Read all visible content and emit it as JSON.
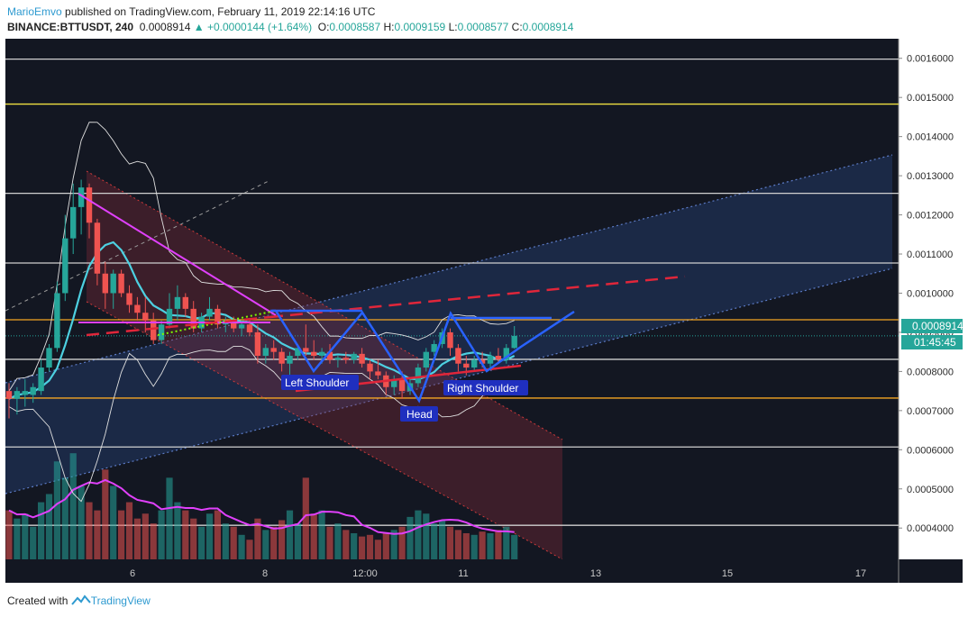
{
  "header": {
    "user": "MarioEmvo",
    "published_text": "published on TradingView.com, February 11, 2019 22:14:16 UTC",
    "symbol": "BINANCE:BTTUSDT, 240",
    "last": "0.0008914",
    "change": "▲ +0.0000144 (+1.64%)",
    "o_label": "O:",
    "o_value": "0.0008587",
    "h_label": "H:",
    "h_value": "0.0009159",
    "l_label": "L:",
    "l_value": "0.0008577",
    "c_label": "C:",
    "c_value": "0.0008914"
  },
  "footer": {
    "created_with": "Created with",
    "brand": "TradingView",
    "logo_icon": "tradingview-logo-icon"
  },
  "price_tag": {
    "value": "0.0008914",
    "countdown": "01:45:45"
  },
  "pattern_labels": {
    "left": "Left Shoulder",
    "head": "Head",
    "right": "Right Shoulder"
  },
  "colors": {
    "background": "#131722",
    "up": "#26a69a",
    "down": "#ef5350",
    "ma": "#4dd0e1",
    "volume_ma": "#e040fb",
    "neckline": "#2962ff",
    "channel": "#5c7cc8",
    "level_white": "#d0d0d0",
    "level_yellow": "#f0e040",
    "level_orange": "#f5a623"
  },
  "chart_data": {
    "type": "candlestick",
    "ylim": [
      0.00032,
      0.00165
    ],
    "y_ticks": [
      "0.0016000",
      "0.0015000",
      "0.0014000",
      "0.0013000",
      "0.0012000",
      "0.0011000",
      "0.0010000",
      "0.0009000",
      "0.0008000",
      "0.0007000",
      "0.0006000",
      "0.0005000",
      "0.0004000"
    ],
    "x_ticks": [
      "6",
      "8",
      "12:00",
      "11",
      "13",
      "15",
      "17"
    ],
    "horizontal_levels": [
      {
        "price": 0.001598,
        "color": "white"
      },
      {
        "price": 0.001483,
        "color": "yellow"
      },
      {
        "price": 0.001255,
        "color": "white"
      },
      {
        "price": 0.001077,
        "color": "white"
      },
      {
        "price": 0.000932,
        "color": "orange"
      },
      {
        "price": 0.000831,
        "color": "white"
      },
      {
        "price": 0.000732,
        "color": "orange"
      },
      {
        "price": 0.000607,
        "color": "white"
      },
      {
        "price": 0.000407,
        "color": "white"
      }
    ],
    "candles": [
      {
        "o": 0.00075,
        "h": 0.00077,
        "l": 0.00068,
        "c": 0.00073
      },
      {
        "o": 0.00073,
        "h": 0.00076,
        "l": 0.00069,
        "c": 0.00075
      },
      {
        "o": 0.00074,
        "h": 0.00078,
        "l": 0.00071,
        "c": 0.00075
      },
      {
        "o": 0.00074,
        "h": 0.00077,
        "l": 0.00072,
        "c": 0.00076
      },
      {
        "o": 0.00075,
        "h": 0.00083,
        "l": 0.00074,
        "c": 0.00081
      },
      {
        "o": 0.00081,
        "h": 0.00087,
        "l": 0.0008,
        "c": 0.00086
      },
      {
        "o": 0.00086,
        "h": 0.00103,
        "l": 0.00085,
        "c": 0.001
      },
      {
        "o": 0.001,
        "h": 0.0012,
        "l": 0.00098,
        "c": 0.00114
      },
      {
        "o": 0.00114,
        "h": 0.00128,
        "l": 0.0011,
        "c": 0.00122
      },
      {
        "o": 0.00122,
        "h": 0.00129,
        "l": 0.00115,
        "c": 0.00127
      },
      {
        "o": 0.00127,
        "h": 0.00128,
        "l": 0.00114,
        "c": 0.00118
      },
      {
        "o": 0.00118,
        "h": 0.00119,
        "l": 0.00102,
        "c": 0.00105
      },
      {
        "o": 0.00105,
        "h": 0.00108,
        "l": 0.00096,
        "c": 0.001
      },
      {
        "o": 0.001,
        "h": 0.00106,
        "l": 0.00096,
        "c": 0.00105
      },
      {
        "o": 0.00105,
        "h": 0.00106,
        "l": 0.00099,
        "c": 0.001
      },
      {
        "o": 0.001,
        "h": 0.00102,
        "l": 0.00095,
        "c": 0.00097
      },
      {
        "o": 0.00097,
        "h": 0.00099,
        "l": 0.00093,
        "c": 0.00095
      },
      {
        "o": 0.00095,
        "h": 0.00099,
        "l": 0.0009,
        "c": 0.00093
      },
      {
        "o": 0.00093,
        "h": 0.00095,
        "l": 0.00087,
        "c": 0.00088
      },
      {
        "o": 0.00088,
        "h": 0.00093,
        "l": 0.00087,
        "c": 0.00092
      },
      {
        "o": 0.00092,
        "h": 0.001,
        "l": 0.00091,
        "c": 0.00096
      },
      {
        "o": 0.00096,
        "h": 0.00102,
        "l": 0.00093,
        "c": 0.00099
      },
      {
        "o": 0.00099,
        "h": 0.001,
        "l": 0.00094,
        "c": 0.00096
      },
      {
        "o": 0.00096,
        "h": 0.00098,
        "l": 0.0009,
        "c": 0.00091
      },
      {
        "o": 0.00091,
        "h": 0.00095,
        "l": 0.0009,
        "c": 0.00094
      },
      {
        "o": 0.00094,
        "h": 0.00099,
        "l": 0.00093,
        "c": 0.00096
      },
      {
        "o": 0.00096,
        "h": 0.00097,
        "l": 0.00091,
        "c": 0.00092
      },
      {
        "o": 0.00092,
        "h": 0.00094,
        "l": 0.0009,
        "c": 0.00093
      },
      {
        "o": 0.00093,
        "h": 0.00094,
        "l": 0.0009,
        "c": 0.00091
      },
      {
        "o": 0.00091,
        "h": 0.00093,
        "l": 0.00089,
        "c": 0.00092
      },
      {
        "o": 0.00092,
        "h": 0.00093,
        "l": 0.00089,
        "c": 0.0009
      },
      {
        "o": 0.0009,
        "h": 0.00092,
        "l": 0.00082,
        "c": 0.00084
      },
      {
        "o": 0.00084,
        "h": 0.00087,
        "l": 0.00082,
        "c": 0.00086
      },
      {
        "o": 0.00086,
        "h": 0.00088,
        "l": 0.00083,
        "c": 0.00085
      },
      {
        "o": 0.00085,
        "h": 0.00086,
        "l": 0.0008,
        "c": 0.00082
      },
      {
        "o": 0.00082,
        "h": 0.00085,
        "l": 0.00079,
        "c": 0.00084
      },
      {
        "o": 0.00084,
        "h": 0.00087,
        "l": 0.00083,
        "c": 0.00086
      },
      {
        "o": 0.00086,
        "h": 0.00092,
        "l": 0.00084,
        "c": 0.00085
      },
      {
        "o": 0.00085,
        "h": 0.00088,
        "l": 0.00083,
        "c": 0.00084
      },
      {
        "o": 0.00084,
        "h": 0.00086,
        "l": 0.00082,
        "c": 0.00085
      },
      {
        "o": 0.00085,
        "h": 0.00087,
        "l": 0.00082,
        "c": 0.00083
      },
      {
        "o": 0.00083,
        "h": 0.00084,
        "l": 0.00081,
        "c": 0.000835
      },
      {
        "o": 0.000835,
        "h": 0.00085,
        "l": 0.00082,
        "c": 0.00083
      },
      {
        "o": 0.00083,
        "h": 0.00085,
        "l": 0.00082,
        "c": 0.000845
      },
      {
        "o": 0.000845,
        "h": 0.00086,
        "l": 0.00081,
        "c": 0.00082
      },
      {
        "o": 0.00082,
        "h": 0.00083,
        "l": 0.00078,
        "c": 0.0008
      },
      {
        "o": 0.0008,
        "h": 0.00083,
        "l": 0.00078,
        "c": 0.00079
      },
      {
        "o": 0.00079,
        "h": 0.0008,
        "l": 0.00074,
        "c": 0.00076
      },
      {
        "o": 0.00076,
        "h": 0.00079,
        "l": 0.00074,
        "c": 0.00078
      },
      {
        "o": 0.00078,
        "h": 0.0008,
        "l": 0.00073,
        "c": 0.00075
      },
      {
        "o": 0.00075,
        "h": 0.00078,
        "l": 0.00074,
        "c": 0.00077
      },
      {
        "o": 0.00077,
        "h": 0.00082,
        "l": 0.00076,
        "c": 0.00081
      },
      {
        "o": 0.00081,
        "h": 0.00086,
        "l": 0.0008,
        "c": 0.00085
      },
      {
        "o": 0.00085,
        "h": 0.00088,
        "l": 0.00084,
        "c": 0.00087
      },
      {
        "o": 0.00087,
        "h": 0.00091,
        "l": 0.00086,
        "c": 0.0009
      },
      {
        "o": 0.0009,
        "h": 0.00091,
        "l": 0.00084,
        "c": 0.00086
      },
      {
        "o": 0.00086,
        "h": 0.00087,
        "l": 0.0008,
        "c": 0.00082
      },
      {
        "o": 0.00082,
        "h": 0.00084,
        "l": 0.00079,
        "c": 0.00081
      },
      {
        "o": 0.00081,
        "h": 0.00084,
        "l": 0.0008,
        "c": 0.00083
      },
      {
        "o": 0.00083,
        "h": 0.00085,
        "l": 0.00081,
        "c": 0.00082
      },
      {
        "o": 0.00082,
        "h": 0.00085,
        "l": 0.00081,
        "c": 0.00084
      },
      {
        "o": 0.00084,
        "h": 0.00086,
        "l": 0.00082,
        "c": 0.00083
      },
      {
        "o": 0.00083,
        "h": 0.00087,
        "l": 0.00082,
        "c": 0.00086
      },
      {
        "o": 0.00086,
        "h": 0.000916,
        "l": 0.000858,
        "c": 0.000891
      }
    ],
    "volumes": [
      0.3,
      0.25,
      0.28,
      0.2,
      0.35,
      0.4,
      0.6,
      0.5,
      0.65,
      0.45,
      0.35,
      0.3,
      0.55,
      0.45,
      0.3,
      0.35,
      0.25,
      0.28,
      0.22,
      0.3,
      0.5,
      0.35,
      0.3,
      0.25,
      0.2,
      0.28,
      0.3,
      0.22,
      0.2,
      0.15,
      0.12,
      0.25,
      0.18,
      0.2,
      0.24,
      0.3,
      0.22,
      0.5,
      0.28,
      0.3,
      0.2,
      0.22,
      0.18,
      0.16,
      0.14,
      0.15,
      0.12,
      0.16,
      0.18,
      0.2,
      0.26,
      0.3,
      0.28,
      0.22,
      0.24,
      0.2,
      0.18,
      0.16,
      0.15,
      0.17,
      0.16,
      0.18,
      0.2,
      0.15
    ]
  }
}
